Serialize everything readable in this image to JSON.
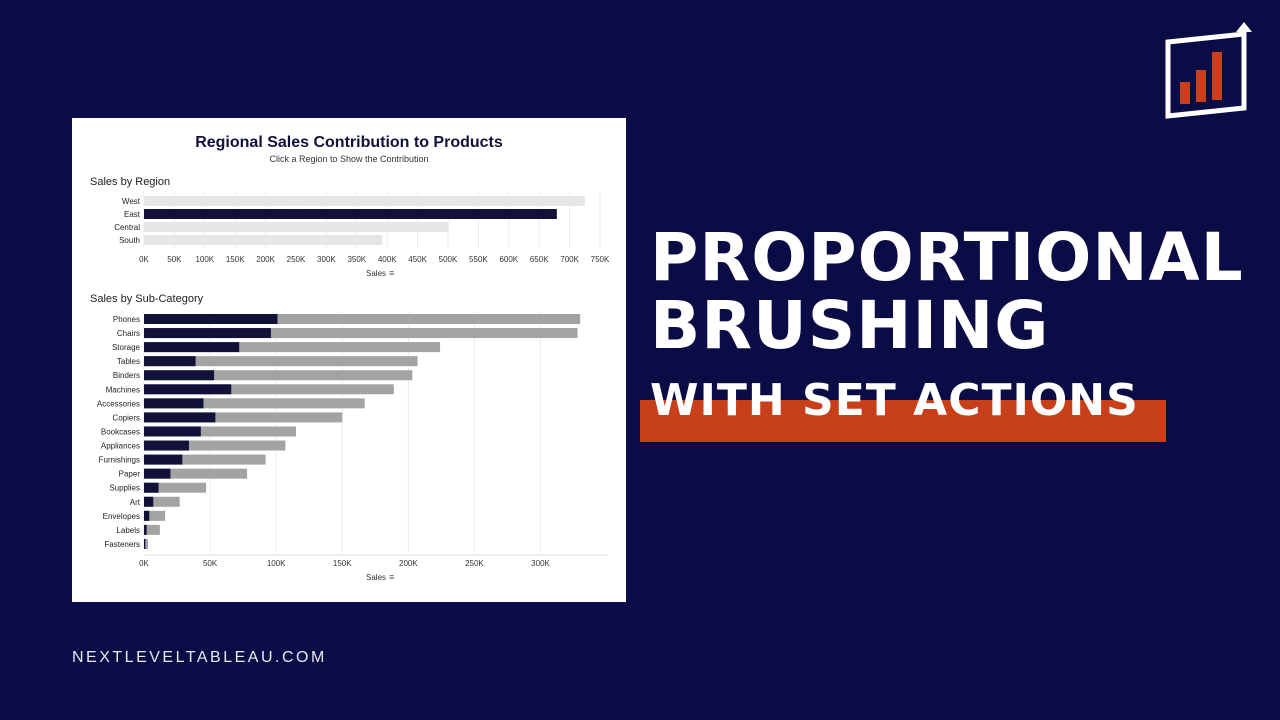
{
  "dashboard": {
    "title": "Regional Sales Contribution to Products",
    "subtitle": "Click a Region to Show the Contribution"
  },
  "chart_data": [
    {
      "type": "bar",
      "orientation": "horizontal",
      "title": "Sales by Region",
      "xlabel": "Sales",
      "categories": [
        "West",
        "East",
        "Central",
        "South"
      ],
      "values": [
        725000,
        679000,
        501000,
        392000
      ],
      "selected": "East",
      "xlim": [
        0,
        750000
      ],
      "xticks": [
        "0K",
        "50K",
        "100K",
        "150K",
        "200K",
        "250K",
        "300K",
        "350K",
        "400K",
        "450K",
        "500K",
        "550K",
        "600K",
        "650K",
        "700K",
        "750K"
      ],
      "xtick_values": [
        0,
        50000,
        100000,
        150000,
        200000,
        250000,
        300000,
        350000,
        400000,
        450000,
        500000,
        550000,
        600000,
        650000,
        700000,
        750000
      ],
      "colors": {
        "selected": "#11113a",
        "other": "#e6e6e6"
      },
      "grid": "vertical"
    },
    {
      "type": "bar",
      "orientation": "horizontal",
      "stacked": "overlay",
      "title": "Sales by Sub-Category",
      "xlabel": "Sales",
      "categories": [
        "Phones",
        "Chairs",
        "Storage",
        "Tables",
        "Binders",
        "Machines",
        "Accessories",
        "Copiers",
        "Bookcases",
        "Appliances",
        "Furnishings",
        "Paper",
        "Supplies",
        "Art",
        "Envelopes",
        "Labels",
        "Fasteners"
      ],
      "series": [
        {
          "values": [
            330000,
            328000,
            224000,
            207000,
            203000,
            189000,
            167000,
            150000,
            115000,
            107000,
            92000,
            78000,
            47000,
            27000,
            16000,
            12000,
            3000
          ]
        },
        {
          "values": [
            101000,
            96000,
            72000,
            39000,
            53000,
            66000,
            45000,
            54000,
            43000,
            34000,
            29000,
            20000,
            11000,
            7000,
            4000,
            2000,
            1000
          ]
        }
      ],
      "xlim": [
        0,
        345000
      ],
      "xticks": [
        "0K",
        "50K",
        "100K",
        "150K",
        "200K",
        "250K",
        "300K"
      ],
      "xtick_values": [
        0,
        50000,
        100000,
        150000,
        200000,
        250000,
        300000
      ],
      "colors": {
        "selected": "#11113a",
        "total": "#a3a3a3"
      },
      "grid": "vertical"
    }
  ],
  "headline": {
    "line1": "PROPORTIONAL",
    "line2": "BRUSHING",
    "line3": "WITH SET ACTIONS"
  },
  "site_url": "NEXTLEVELTABLEAU.COM",
  "icons": {
    "logo": "rising-bar-chart-icon",
    "sort": "sort-descending-icon"
  },
  "theme": {
    "background": "#0b0b45",
    "accent": "#c8401a"
  }
}
